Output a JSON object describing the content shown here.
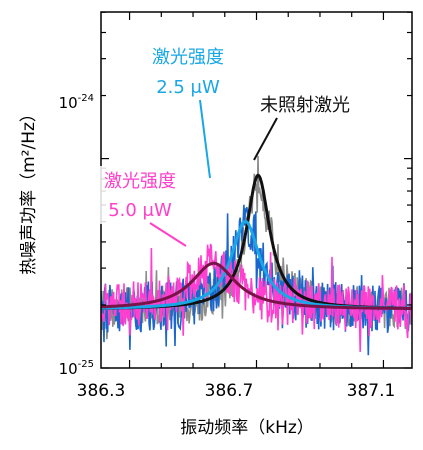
{
  "chart_data": {
    "type": "line",
    "xlabel": "振动频率（kHz）",
    "ylabel": "热噪声功率（m²/Hz）",
    "x_ticks": [
      {
        "value": 386.3,
        "label": "386.3"
      },
      {
        "value": 386.7,
        "label": "386.7"
      },
      {
        "value": 387.1,
        "label": "387.1"
      }
    ],
    "y_ticks": [
      {
        "value": -24,
        "label_base": "10",
        "label_exp": "-24"
      },
      {
        "value": -25,
        "label_base": "10",
        "label_exp": "-25"
      }
    ],
    "xlim": [
      386.21,
      387.19
    ],
    "ylim_log10": [
      -25,
      -23.3
    ],
    "y_scale": "log",
    "grid": false,
    "series": [
      {
        "name": "未照射激光",
        "color": "#111111",
        "fit": {
          "center": 386.705,
          "peak_log10": -24.08,
          "base_log10": -24.72,
          "width": 0.045
        },
        "noise": {
          "color": "#8c8c8c",
          "amp": 0.1
        }
      },
      {
        "name": "激光强度 2.5 μW",
        "color": "#19a7e6",
        "fit": {
          "center": 386.665,
          "peak_log10": -24.3,
          "base_log10": -24.72,
          "width": 0.055
        },
        "noise": {
          "color": "#1b66cc",
          "amp": 0.12
        }
      },
      {
        "name": "激光强度 5.0 μW",
        "color": "#7a1448",
        "fit": {
          "center": 386.565,
          "peak_log10": -24.5,
          "base_log10": -24.72,
          "width": 0.085
        },
        "noise": {
          "color": "#ff3fd0",
          "amp": 0.11
        }
      }
    ],
    "annotations": [
      {
        "line1": "激光强度",
        "line2": "2.5 μW",
        "color": "#19a7e6"
      },
      {
        "line1": "激光强度",
        "line2": "5.0 μW",
        "color": "#ff40c8"
      },
      {
        "line1": "未照射激光",
        "color": "#111111"
      }
    ]
  }
}
